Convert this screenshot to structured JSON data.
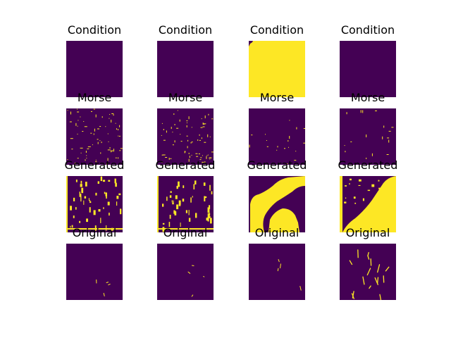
{
  "figure": {
    "background": "#ffffff",
    "colormap": {
      "low": "#440154",
      "high": "#fde725"
    },
    "row_titles": [
      "Condition",
      "Morse",
      "Generated",
      "Original"
    ],
    "panels": [
      {
        "row": 0,
        "col": 0,
        "title": "Condition",
        "content": "empty"
      },
      {
        "row": 0,
        "col": 1,
        "title": "Condition",
        "content": "empty"
      },
      {
        "row": 0,
        "col": 2,
        "title": "Condition",
        "content": "mostly-filled"
      },
      {
        "row": 0,
        "col": 3,
        "title": "Condition",
        "content": "empty"
      },
      {
        "row": 1,
        "col": 0,
        "title": "Morse",
        "content": "dense-specks"
      },
      {
        "row": 1,
        "col": 1,
        "title": "Morse",
        "content": "dense-specks"
      },
      {
        "row": 1,
        "col": 2,
        "title": "Morse",
        "content": "sparse-specks"
      },
      {
        "row": 1,
        "col": 3,
        "title": "Morse",
        "content": "sparse-specks"
      },
      {
        "row": 2,
        "col": 0,
        "title": "Generated",
        "content": "blobs"
      },
      {
        "row": 2,
        "col": 1,
        "title": "Generated",
        "content": "blobs"
      },
      {
        "row": 2,
        "col": 2,
        "title": "Generated",
        "content": "large-region"
      },
      {
        "row": 2,
        "col": 3,
        "title": "Generated",
        "content": "large-region"
      },
      {
        "row": 3,
        "col": 0,
        "title": "Original",
        "content": "few-lines"
      },
      {
        "row": 3,
        "col": 1,
        "title": "Original",
        "content": "few-lines"
      },
      {
        "row": 3,
        "col": 2,
        "title": "Original",
        "content": "few-lines"
      },
      {
        "row": 3,
        "col": 3,
        "title": "Original",
        "content": "many-lines"
      }
    ]
  }
}
